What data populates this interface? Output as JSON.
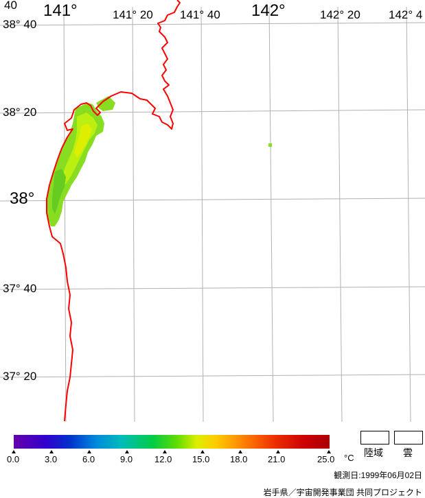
{
  "map": {
    "lon_labels_top": [
      "141°",
      "141° 20",
      "141° 40",
      "142°",
      "142° 20",
      "142° 4"
    ],
    "lat_labels_left": [
      "38° 40",
      "38° 20",
      "38°",
      "37° 40",
      "37° 20"
    ],
    "corner_fragment": "40",
    "coast_color": "#ff0000",
    "grid_color": "#b0b0b0",
    "sst_colors": [
      "#88dd22",
      "#bbee11",
      "#ddee00",
      "#66cc22"
    ]
  },
  "scale": {
    "ticks": [
      "0.0",
      "3.0",
      "6.0",
      "9.0",
      "12.0",
      "15.0",
      "18.0",
      "21.0",
      "25.0"
    ],
    "unit": "°C",
    "land_label": "陸域",
    "cloud_label": "雲"
  },
  "footer": {
    "date_line": "観測日:1999年06月02日",
    "credit_line": "岩手県／宇宙開発事業団  共同プロジェクト"
  }
}
